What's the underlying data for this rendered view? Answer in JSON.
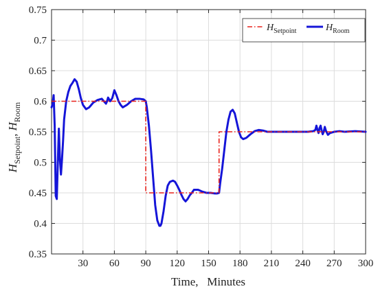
{
  "chart_data": {
    "type": "line",
    "title": "",
    "xlabel": "Time,   Minutes",
    "ylabel": {
      "main": "H",
      "sub1": "Setpoint",
      "sep": ", ",
      "main2": "H",
      "sub2": "Room"
    },
    "xlim": [
      0,
      300
    ],
    "ylim": [
      0.35,
      0.75
    ],
    "x_ticks": [
      30,
      60,
      90,
      120,
      150,
      180,
      210,
      240,
      270,
      300
    ],
    "y_ticks": [
      0.35,
      0.4,
      0.45,
      0.5,
      0.55,
      0.6,
      0.65,
      0.7,
      0.75
    ],
    "grid": true,
    "legend_position": "top-right",
    "series": [
      {
        "name": "H_Setpoint",
        "legend_main": "H",
        "legend_sub": "Setpoint",
        "color": "#e8201a",
        "style": "dash-dot",
        "x": [
          0,
          90,
          90,
          160,
          160,
          300
        ],
        "y": [
          0.6,
          0.6,
          0.45,
          0.45,
          0.55,
          0.55
        ]
      },
      {
        "name": "H_Room",
        "legend_main": "H",
        "legend_sub": "Room",
        "color": "#1515d8",
        "style": "solid",
        "x": [
          0,
          1,
          2,
          3,
          4,
          5,
          6,
          7,
          8,
          9,
          10,
          11,
          12,
          14,
          16,
          18,
          20,
          22,
          24,
          26,
          28,
          30,
          33,
          36,
          40,
          44,
          48,
          50,
          52,
          53,
          54,
          56,
          58,
          60,
          62,
          64,
          66,
          68,
          72,
          76,
          80,
          84,
          88,
          90,
          91,
          93,
          95,
          97,
          99,
          101,
          103,
          104,
          105,
          107,
          109,
          111,
          113,
          116,
          118,
          120,
          122,
          124,
          126,
          128,
          130,
          132,
          134,
          136,
          140,
          144,
          148,
          152,
          156,
          158,
          160,
          161,
          163,
          165,
          167,
          169,
          171,
          173,
          175,
          177,
          179,
          181,
          183,
          186,
          190,
          194,
          198,
          202,
          206,
          210,
          220,
          230,
          240,
          245,
          250,
          252,
          253,
          254,
          255,
          256,
          257,
          258,
          259,
          260,
          261,
          262,
          264,
          266,
          270,
          275,
          280,
          290,
          300
        ],
        "y": [
          0.59,
          0.595,
          0.61,
          0.56,
          0.445,
          0.44,
          0.5,
          0.555,
          0.505,
          0.48,
          0.505,
          0.535,
          0.57,
          0.6,
          0.615,
          0.625,
          0.63,
          0.636,
          0.632,
          0.62,
          0.605,
          0.594,
          0.587,
          0.59,
          0.598,
          0.602,
          0.604,
          0.6,
          0.596,
          0.6,
          0.606,
          0.6,
          0.605,
          0.618,
          0.61,
          0.6,
          0.594,
          0.59,
          0.594,
          0.6,
          0.604,
          0.604,
          0.603,
          0.6,
          0.59,
          0.56,
          0.52,
          0.475,
          0.43,
          0.405,
          0.396,
          0.396,
          0.4,
          0.42,
          0.445,
          0.462,
          0.468,
          0.47,
          0.468,
          0.462,
          0.455,
          0.447,
          0.44,
          0.436,
          0.44,
          0.446,
          0.45,
          0.455,
          0.455,
          0.452,
          0.45,
          0.45,
          0.449,
          0.449,
          0.45,
          0.465,
          0.49,
          0.52,
          0.55,
          0.57,
          0.583,
          0.586,
          0.58,
          0.565,
          0.55,
          0.541,
          0.538,
          0.54,
          0.546,
          0.551,
          0.553,
          0.552,
          0.55,
          0.55,
          0.55,
          0.55,
          0.55,
          0.55,
          0.551,
          0.553,
          0.56,
          0.553,
          0.548,
          0.556,
          0.56,
          0.552,
          0.546,
          0.55,
          0.558,
          0.552,
          0.545,
          0.548,
          0.55,
          0.551,
          0.55,
          0.551,
          0.55
        ]
      }
    ]
  }
}
